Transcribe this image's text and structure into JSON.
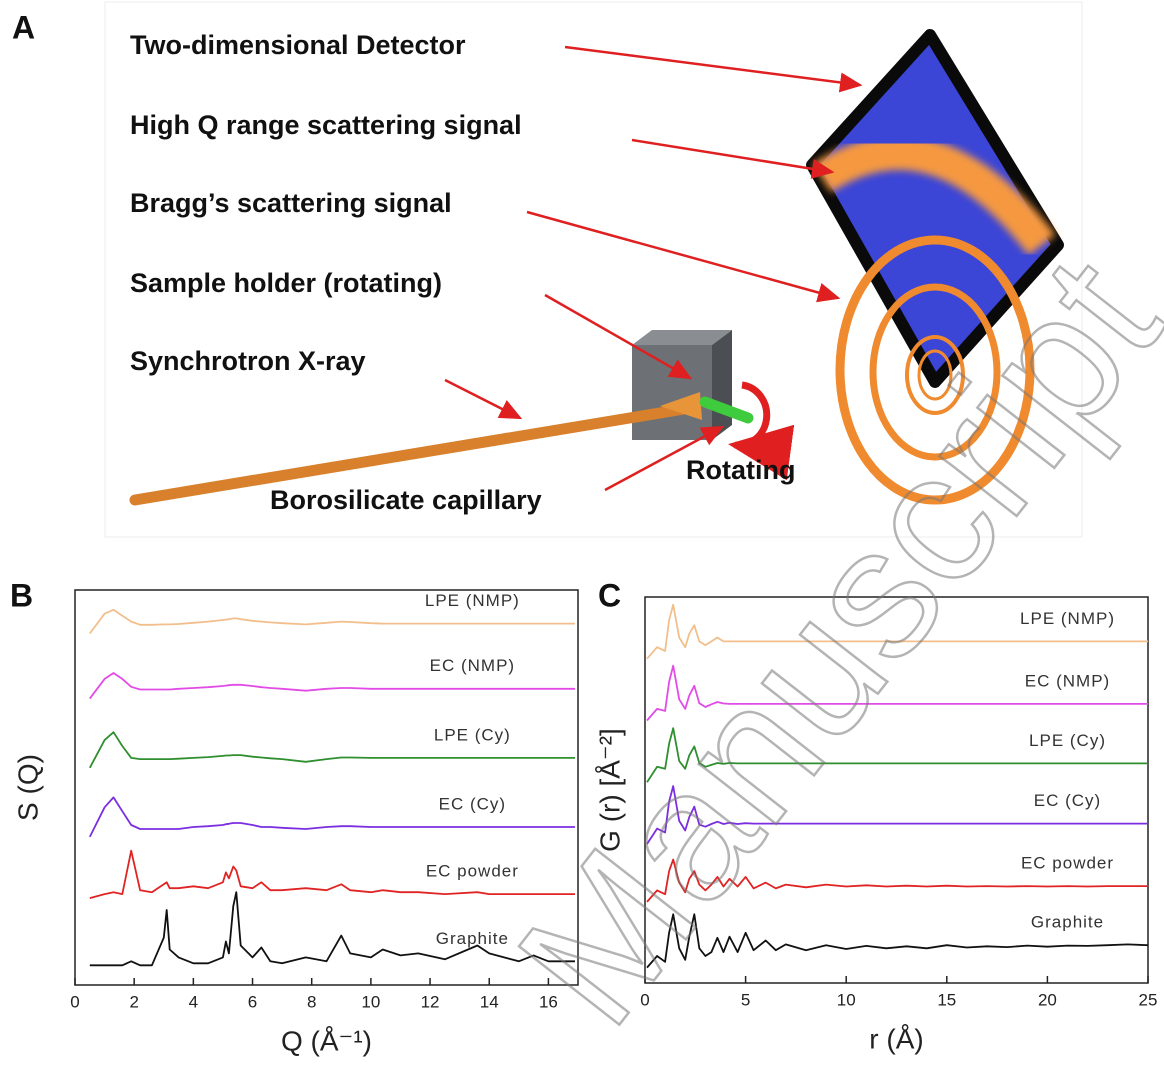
{
  "panel_labels": [
    "A",
    "B",
    "C"
  ],
  "diagram": {
    "labels": [
      "Two-dimensional Detector",
      "High Q range scattering signal",
      "Bragg’s scattering signal",
      "Sample holder (rotating)",
      "Synchrotron X-ray"
    ],
    "rotating": "Rotating",
    "capillary": "Borosilicate capillary"
  },
  "watermark": "Manuscript",
  "chart_data": [
    {
      "type": "line",
      "xlabel": "Q (Å⁻¹)",
      "ylabel": "S (Q)",
      "xlim": [
        0,
        17
      ],
      "xticks": [
        0,
        2,
        4,
        6,
        8,
        10,
        12,
        14,
        16
      ],
      "ylim": [
        0,
        10
      ],
      "x": [
        0.5,
        1.0,
        1.3,
        1.6,
        1.9,
        2.2,
        2.6,
        3.0,
        3.1,
        3.2,
        3.5,
        4.0,
        4.5,
        5.0,
        5.1,
        5.2,
        5.35,
        5.45,
        5.6,
        6.0,
        6.3,
        6.6,
        7.0,
        7.8,
        8.5,
        9.0,
        9.3,
        10.0,
        10.4,
        11.0,
        11.6,
        12.5,
        13.6,
        14.0,
        15.0,
        15.5,
        16.0,
        16.9
      ],
      "series": [
        {
          "name": "LPE (NMP)",
          "color": "#f2bf8c",
          "values": [
            8.9,
            9.4,
            9.5,
            9.35,
            9.2,
            9.12,
            9.12,
            9.13,
            9.13,
            9.13,
            9.14,
            9.17,
            9.2,
            9.24,
            9.25,
            9.26,
            9.28,
            9.28,
            9.26,
            9.22,
            9.2,
            9.18,
            9.16,
            9.13,
            9.17,
            9.2,
            9.19,
            9.16,
            9.15,
            9.15,
            9.15,
            9.15,
            9.15,
            9.15,
            9.15,
            9.15,
            9.15,
            9.15
          ]
        },
        {
          "name": "EC (NMP)",
          "color": "#e24ce6",
          "values": [
            7.25,
            7.75,
            7.9,
            7.75,
            7.55,
            7.48,
            7.48,
            7.48,
            7.48,
            7.48,
            7.5,
            7.52,
            7.54,
            7.57,
            7.58,
            7.59,
            7.6,
            7.6,
            7.6,
            7.57,
            7.54,
            7.52,
            7.5,
            7.45,
            7.5,
            7.52,
            7.52,
            7.5,
            7.5,
            7.5,
            7.5,
            7.5,
            7.5,
            7.5,
            7.5,
            7.5,
            7.5,
            7.5
          ]
        },
        {
          "name": "LPE (Cy)",
          "color": "#2f8f2f",
          "values": [
            5.5,
            6.2,
            6.4,
            6.05,
            5.75,
            5.72,
            5.72,
            5.72,
            5.72,
            5.72,
            5.73,
            5.75,
            5.77,
            5.8,
            5.81,
            5.81,
            5.82,
            5.82,
            5.82,
            5.78,
            5.76,
            5.74,
            5.72,
            5.65,
            5.72,
            5.76,
            5.76,
            5.75,
            5.75,
            5.75,
            5.75,
            5.75,
            5.75,
            5.75,
            5.75,
            5.75,
            5.75,
            5.75
          ]
        },
        {
          "name": "EC (Cy)",
          "color": "#7a2ee0",
          "values": [
            3.75,
            4.5,
            4.75,
            4.4,
            4.05,
            3.95,
            3.95,
            3.95,
            3.95,
            3.95,
            3.95,
            4.0,
            4.02,
            4.05,
            4.07,
            4.08,
            4.1,
            4.1,
            4.1,
            4.05,
            4.0,
            4.0,
            3.98,
            3.95,
            4.0,
            4.02,
            4.02,
            4.0,
            4.0,
            4.0,
            4.0,
            4.0,
            4.0,
            4.0,
            4.0,
            4.0,
            4.0,
            4.0
          ]
        },
        {
          "name": "EC powder",
          "color": "#e02424",
          "values": [
            2.2,
            2.3,
            2.35,
            2.3,
            3.4,
            2.4,
            2.35,
            2.55,
            2.6,
            2.45,
            2.45,
            2.5,
            2.45,
            2.6,
            2.85,
            2.7,
            3.0,
            2.9,
            2.5,
            2.45,
            2.6,
            2.4,
            2.4,
            2.45,
            2.4,
            2.55,
            2.4,
            2.35,
            2.4,
            2.35,
            2.35,
            2.3,
            2.35,
            2.3,
            2.3,
            2.3,
            2.3,
            2.3
          ]
        },
        {
          "name": "Graphite",
          "color": "#111111",
          "values": [
            0.5,
            0.5,
            0.5,
            0.5,
            0.6,
            0.5,
            0.5,
            1.2,
            1.9,
            0.9,
            0.7,
            0.55,
            0.55,
            0.7,
            1.1,
            0.8,
            2.0,
            2.35,
            1.0,
            0.7,
            0.95,
            0.6,
            0.55,
            0.7,
            0.6,
            1.25,
            0.8,
            0.7,
            0.9,
            0.75,
            0.8,
            0.65,
            1.0,
            0.8,
            0.6,
            0.75,
            0.6,
            0.6
          ]
        }
      ]
    },
    {
      "type": "line",
      "xlabel": "r (Å)",
      "ylabel": "G (r) [Å⁻²]",
      "xlim": [
        0,
        25
      ],
      "xticks": [
        0,
        5,
        10,
        15,
        20,
        25
      ],
      "ylim": [
        0,
        10
      ],
      "x": [
        0.1,
        0.6,
        1.0,
        1.2,
        1.4,
        1.7,
        2.0,
        2.2,
        2.45,
        2.7,
        3.0,
        3.3,
        3.6,
        3.9,
        4.2,
        4.6,
        5.0,
        5.4,
        6.0,
        6.5,
        7,
        8,
        9,
        10,
        11,
        12,
        13,
        14,
        15,
        16,
        17,
        18,
        19,
        20,
        21,
        22,
        23,
        24,
        25
      ],
      "series": [
        {
          "name": "LPE (NMP)",
          "color": "#f2bf8c",
          "values": [
            8.4,
            8.7,
            8.6,
            9.4,
            9.8,
            8.95,
            8.7,
            9.05,
            9.27,
            8.85,
            8.75,
            8.85,
            8.95,
            8.85,
            8.85,
            8.85,
            8.85,
            8.85,
            8.85,
            8.85,
            8.85,
            8.85,
            8.85,
            8.85,
            8.85,
            8.85,
            8.85,
            8.85,
            8.85,
            8.85,
            8.85,
            8.85,
            8.85,
            8.85,
            8.85,
            8.85,
            8.85,
            8.85,
            8.85
          ]
        },
        {
          "name": "EC (NMP)",
          "color": "#e24ce6",
          "values": [
            6.8,
            7.1,
            7.05,
            7.8,
            8.22,
            7.35,
            7.1,
            7.45,
            7.7,
            7.25,
            7.15,
            7.22,
            7.28,
            7.24,
            7.23,
            7.23,
            7.23,
            7.23,
            7.23,
            7.23,
            7.23,
            7.23,
            7.23,
            7.23,
            7.23,
            7.23,
            7.23,
            7.23,
            7.23,
            7.23,
            7.23,
            7.23,
            7.23,
            7.23,
            7.23,
            7.23,
            7.23,
            7.23,
            7.23
          ]
        },
        {
          "name": "LPE (Cy)",
          "color": "#2f8f2f",
          "values": [
            5.2,
            5.6,
            5.55,
            6.2,
            6.6,
            5.75,
            5.55,
            5.9,
            6.13,
            5.7,
            5.6,
            5.65,
            5.7,
            5.68,
            5.7,
            5.69,
            5.69,
            5.69,
            5.69,
            5.69,
            5.69,
            5.69,
            5.69,
            5.69,
            5.69,
            5.69,
            5.69,
            5.69,
            5.69,
            5.69,
            5.69,
            5.69,
            5.69,
            5.69,
            5.69,
            5.69,
            5.69,
            5.69,
            5.69
          ]
        },
        {
          "name": "EC (Cy)",
          "color": "#7a2ee0",
          "values": [
            3.6,
            4.0,
            3.9,
            4.7,
            5.1,
            4.2,
            3.95,
            4.3,
            4.57,
            4.1,
            4.05,
            4.12,
            4.18,
            4.12,
            4.15,
            4.12,
            4.14,
            4.13,
            4.13,
            4.13,
            4.13,
            4.13,
            4.13,
            4.13,
            4.13,
            4.13,
            4.13,
            4.13,
            4.13,
            4.13,
            4.13,
            4.13,
            4.13,
            4.13,
            4.13,
            4.13,
            4.13,
            4.13,
            4.13
          ]
        },
        {
          "name": "EC powder",
          "color": "#e02424",
          "values": [
            2.1,
            2.4,
            2.3,
            2.9,
            3.2,
            2.6,
            2.35,
            2.7,
            2.9,
            2.55,
            2.4,
            2.55,
            2.75,
            2.5,
            2.7,
            2.5,
            2.75,
            2.45,
            2.6,
            2.45,
            2.55,
            2.48,
            2.55,
            2.5,
            2.53,
            2.5,
            2.52,
            2.5,
            2.52,
            2.5,
            2.51,
            2.5,
            2.51,
            2.5,
            2.51,
            2.5,
            2.51,
            2.51,
            2.51
          ]
        },
        {
          "name": "Graphite",
          "color": "#111111",
          "values": [
            0.4,
            0.7,
            0.55,
            1.3,
            1.78,
            0.9,
            0.6,
            1.2,
            1.78,
            0.9,
            0.7,
            0.8,
            1.17,
            0.8,
            1.2,
            0.8,
            1.3,
            0.85,
            1.1,
            0.85,
            1.0,
            0.85,
            0.98,
            0.88,
            0.96,
            0.9,
            0.95,
            0.9,
            0.98,
            0.92,
            0.95,
            0.93,
            0.97,
            0.94,
            0.97,
            0.96,
            0.98,
            1.0,
            0.98
          ]
        }
      ]
    }
  ]
}
